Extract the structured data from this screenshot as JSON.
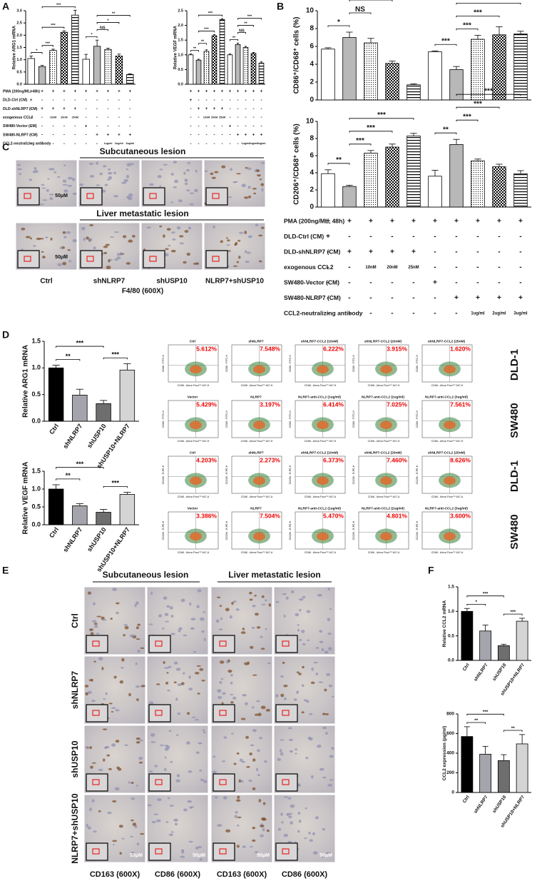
{
  "panels": {
    "a": "A",
    "b": "B",
    "c": "C",
    "d": "D",
    "e": "E",
    "f": "F"
  },
  "conditions": {
    "rows": [
      {
        "label": "PMA (200ng/ML, 48h)",
        "cells": [
          "+",
          "+",
          "+",
          "+",
          "+",
          "+",
          "+",
          "+",
          "+",
          "+"
        ]
      },
      {
        "label": "DLD-Ctrl (CM)",
        "cells": [
          "+",
          "-",
          "-",
          "-",
          "-",
          "-",
          "-",
          "-",
          "-",
          "-"
        ]
      },
      {
        "label": "DLD-shNLRP7 (CM)",
        "cells": [
          "-",
          "+",
          "+",
          "+",
          "+",
          "-",
          "-",
          "-",
          "-",
          "-"
        ]
      },
      {
        "label": "exogenous CCL2",
        "cells": [
          "-",
          "-",
          "10nM",
          "20nM",
          "25nM",
          "-",
          "-",
          "-",
          "-",
          "-"
        ]
      },
      {
        "label": "SW480-Vector (CM)",
        "cells": [
          "-",
          "-",
          "-",
          "-",
          "-",
          "+",
          "-",
          "-",
          "-",
          "-"
        ]
      },
      {
        "label": "SW480-NLRP7 (CM)",
        "cells": [
          "-",
          "-",
          "-",
          "-",
          "-",
          "-",
          "+",
          "+",
          "+",
          "+"
        ]
      },
      {
        "label": "CCL2-neutralizing antibody",
        "cells": [
          "-",
          "-",
          "-",
          "-",
          "-",
          "-",
          "-",
          "1ug/ml",
          "2ug/ml",
          "3ug/ml"
        ]
      }
    ]
  },
  "chart_data": [
    {
      "type": "bar",
      "y_label": "Relative ARG1 mRNA",
      "values": [
        1.05,
        0.72,
        1.38,
        2.12,
        2.82,
        1.02,
        1.55,
        1.42,
        1.15,
        0.4
      ],
      "errors": [
        0.1,
        0.05,
        0.05,
        0.06,
        0.2,
        0.2,
        0.25,
        0.05,
        0.08,
        0.03
      ],
      "patterns": [
        "white",
        "gray",
        "dots",
        "checker",
        "hlines",
        "white",
        "gray",
        "dots",
        "checker",
        "hlines"
      ],
      "ylim": [
        0,
        3
      ],
      "yticks": [
        {
          "value": 0,
          "label": "0.0"
        },
        0.5,
        {
          "value": 1,
          "label": "1.0"
        },
        1.5,
        {
          "value": 2,
          "label": "2.0"
        },
        2.5,
        {
          "value": 3,
          "label": "3.0"
        }
      ],
      "significance": [
        {
          "from": 0,
          "to": 1,
          "label": "*"
        },
        {
          "from": 1,
          "to": 2,
          "label": "***"
        },
        {
          "from": 1,
          "to": 3,
          "label": "***"
        },
        {
          "from": 1,
          "to": 4,
          "label": "***"
        },
        {
          "from": 5,
          "to": 6,
          "label": "*"
        },
        {
          "from": 6,
          "to": 7,
          "label": "NS"
        },
        {
          "from": 6,
          "to": 8,
          "label": "*"
        },
        {
          "from": 6,
          "to": 9,
          "label": "**"
        }
      ]
    },
    {
      "type": "bar",
      "y_label": "Relative VEGF mRNA",
      "values": [
        1.0,
        0.82,
        1.12,
        1.65,
        2.2,
        1.0,
        1.35,
        1.25,
        1.05,
        0.72
      ],
      "errors": [
        0.03,
        0.03,
        0.05,
        0.04,
        0.03,
        0.03,
        0.05,
        0.04,
        0.03,
        0.04
      ],
      "patterns": [
        "white",
        "gray",
        "dots",
        "checker",
        "hlines",
        "white",
        "gray",
        "dots",
        "checker",
        "hlines"
      ],
      "ylim": [
        0,
        2.5
      ],
      "yticks": [
        {
          "value": 0,
          "label": "0.0"
        },
        0.5,
        {
          "value": 1,
          "label": "1.0"
        },
        1.5,
        {
          "value": 2,
          "label": "2.0"
        },
        2.5
      ],
      "significance": [
        {
          "from": 0,
          "to": 1,
          "label": "**"
        },
        {
          "from": 1,
          "to": 2,
          "label": "**"
        },
        {
          "from": 1,
          "to": 3,
          "label": "***"
        },
        {
          "from": 1,
          "to": 4,
          "label": "***"
        },
        {
          "from": 5,
          "to": 6,
          "label": "**"
        },
        {
          "from": 6,
          "to": 7,
          "label": "NS"
        },
        {
          "from": 6,
          "to": 8,
          "label": "**"
        },
        {
          "from": 6,
          "to": 9,
          "label": "***"
        }
      ]
    },
    {
      "type": "bar",
      "y_label": "CD86⁺/CD68⁺ cells (%)",
      "values": [
        5.7,
        7.0,
        6.4,
        4.1,
        1.7,
        5.4,
        3.4,
        6.8,
        7.3,
        7.4
      ],
      "errors": [
        0.15,
        0.6,
        0.5,
        0.25,
        0.1,
        0.1,
        0.35,
        0.45,
        0.9,
        0.3
      ],
      "patterns": [
        "white",
        "gray",
        "dots",
        "checker",
        "hlines",
        "white",
        "gray",
        "dots",
        "checker",
        "hlines"
      ],
      "ylim": [
        0,
        10
      ],
      "yticks": [
        0,
        2,
        4,
        6,
        8,
        10
      ],
      "significance": [
        {
          "from": 0,
          "to": 1,
          "label": "*"
        },
        {
          "from": 1,
          "to": 2,
          "label": "NS"
        },
        {
          "from": 1,
          "to": 3,
          "label": "***"
        },
        {
          "from": 1,
          "to": 4,
          "label": "***"
        },
        {
          "from": 5,
          "to": 6,
          "label": "***"
        },
        {
          "from": 6,
          "to": 7,
          "label": "***"
        },
        {
          "from": 6,
          "to": 8,
          "label": "***"
        },
        {
          "from": 6,
          "to": 9,
          "label": "***"
        }
      ]
    },
    {
      "type": "bar",
      "y_label": "CD206⁺/CD68⁺ cells (%)",
      "values": [
        3.9,
        2.4,
        6.3,
        7.0,
        8.3,
        3.6,
        7.3,
        5.4,
        4.7,
        3.9
      ],
      "errors": [
        0.45,
        0.15,
        0.3,
        0.35,
        0.3,
        0.7,
        0.6,
        0.2,
        0.3,
        0.35
      ],
      "patterns": [
        "white",
        "gray",
        "dots",
        "checker",
        "hlines",
        "white",
        "gray",
        "dots",
        "checker",
        "hlines"
      ],
      "ylim": [
        0,
        10
      ],
      "yticks": [
        0,
        2,
        4,
        6,
        8,
        10
      ],
      "significance": [
        {
          "from": 0,
          "to": 1,
          "label": "**"
        },
        {
          "from": 1,
          "to": 2,
          "label": "***"
        },
        {
          "from": 1,
          "to": 3,
          "label": "***"
        },
        {
          "from": 1,
          "to": 4,
          "label": "***"
        },
        {
          "from": 5,
          "to": 6,
          "label": "**"
        },
        {
          "from": 6,
          "to": 7,
          "label": "***"
        },
        {
          "from": 6,
          "to": 8,
          "label": "***"
        },
        {
          "from": 6,
          "to": 9,
          "label": "***"
        }
      ]
    },
    {
      "type": "bar",
      "y_label": "Relative ARG1 mRNA",
      "categories": [
        "Ctrl",
        "shNLRP7",
        "shUSP10",
        "shUSP10+NLRP7"
      ],
      "values": [
        1.0,
        0.49,
        0.33,
        0.96
      ],
      "errors": [
        0.05,
        0.11,
        0.06,
        0.12
      ],
      "colors": [
        "#000000",
        "#a4a4ac",
        "#6e6e6e",
        "#d4d4d4"
      ],
      "ylim": [
        0,
        1.5
      ],
      "yticks": [
        {
          "value": 0,
          "label": "0.0"
        },
        0.5,
        {
          "value": 1,
          "label": "1.0"
        },
        1.5
      ],
      "significance": [
        {
          "from": 0,
          "to": 1,
          "label": "**"
        },
        {
          "from": 2,
          "to": 3,
          "label": "***"
        },
        {
          "from": 0,
          "to": 2,
          "label": "***"
        }
      ]
    },
    {
      "type": "bar",
      "y_label": "Relative VEGF mRNA",
      "categories": [
        "Ctrl",
        "shNLRP7",
        "shUSP10",
        "shUSP10+NLRP7"
      ],
      "values": [
        1.0,
        0.53,
        0.35,
        0.85
      ],
      "errors": [
        0.12,
        0.06,
        0.08,
        0.06
      ],
      "colors": [
        "#000000",
        "#a4a4ac",
        "#6e6e6e",
        "#d4d4d4"
      ],
      "ylim": [
        0,
        1.5
      ],
      "yticks": [
        {
          "value": 0,
          "label": "0.0"
        },
        0.5,
        {
          "value": 1,
          "label": "1.0"
        },
        1.5
      ],
      "significance": [
        {
          "from": 0,
          "to": 1,
          "label": "**"
        },
        {
          "from": 2,
          "to": 3,
          "label": "***"
        },
        {
          "from": 0,
          "to": 2,
          "label": "***"
        }
      ]
    },
    {
      "type": "bar",
      "y_label": "Relative CCL2 mRNA",
      "categories": [
        "Ctrl",
        "shNLRP7",
        "shUSP10",
        "shUSP10+NLRP7"
      ],
      "values": [
        1.0,
        0.6,
        0.3,
        0.8
      ],
      "errors": [
        0.06,
        0.12,
        0.03,
        0.06
      ],
      "colors": [
        "#000000",
        "#a4a4ac",
        "#6e6e6e",
        "#d4d4d4"
      ],
      "ylim": [
        0,
        1.5
      ],
      "yticks": [
        {
          "value": 0,
          "label": "0.0"
        },
        0.5,
        {
          "value": 1,
          "label": "1.0"
        },
        1.5
      ],
      "significance": [
        {
          "from": 0,
          "to": 1,
          "label": "*"
        },
        {
          "from": 2,
          "to": 3,
          "label": "***"
        },
        {
          "from": 0,
          "to": 2,
          "label": "***"
        }
      ]
    },
    {
      "type": "bar",
      "y_label": "CCL2 expression (pg/ml)",
      "categories": [
        "Ctrl",
        "shNLRP7",
        "shUSP10",
        "shUSP10+NLRP7"
      ],
      "values": [
        570,
        390,
        325,
        495
      ],
      "errors": [
        100,
        80,
        60,
        95
      ],
      "colors": [
        "#000000",
        "#a4a4ac",
        "#6e6e6e",
        "#d4d4d4"
      ],
      "ylim": [
        0,
        800
      ],
      "yticks": [
        0,
        200,
        400,
        600,
        800
      ],
      "significance": [
        {
          "from": 0,
          "to": 1,
          "label": "**"
        },
        {
          "from": 2,
          "to": 3,
          "label": "**"
        },
        {
          "from": 0,
          "to": 2,
          "label": "***"
        }
      ]
    }
  ],
  "panel_c": {
    "header_top": "Subcutaneous lesion",
    "header_bottom": "Liver metastatic lesion",
    "scale_bar": "50μM",
    "columns": [
      "Ctrl",
      "shNLRP7",
      "shUSP10",
      "NLRP7+shUSP10"
    ],
    "caption": "F4/80 (600X)"
  },
  "flow": {
    "rows": [
      {
        "label": "DLD-1",
        "y_axis": "CD86 - FITC-H",
        "x_axis": "CD68 - Alexa Fluor™ 647-H",
        "plots": [
          {
            "title": "Ctrl",
            "percent": "5.612%"
          },
          {
            "title": "shNLRP7",
            "percent": "7.548%"
          },
          {
            "title": "shNLRP7-CCL2 (10nM)",
            "percent": "6.222%"
          },
          {
            "title": "shNLRP7-CCL2 (20nM)",
            "percent": "3.915%"
          },
          {
            "title": "shNLRP7-CCL2 (25nM)",
            "percent": "1.620%"
          }
        ]
      },
      {
        "label": "SW480",
        "y_axis": "CD86 - FITC-H",
        "x_axis": "CD68 - Alexa Fluor™ 647-H",
        "plots": [
          {
            "title": "Vector",
            "percent": "5.429%"
          },
          {
            "title": "NLRP7",
            "percent": "3.197%"
          },
          {
            "title": "NLRP7-anti-CCL2 (1ug/ml)",
            "percent": "6.414%"
          },
          {
            "title": "NLRP7-anti-CCL2 (2ug/ml)",
            "percent": "7.025%"
          },
          {
            "title": "NLRP7-anti-CCL2 (3ug/ml)",
            "percent": "7.561%"
          }
        ]
      },
      {
        "label": "DLD-1",
        "y_axis": "CD206 - R-PE-H",
        "x_axis": "CD68 - Alexa Fluor™ 647-A",
        "plots": [
          {
            "title": "Ctrl",
            "percent": "4.203%"
          },
          {
            "title": "shNLRP7",
            "percent": "2.273%"
          },
          {
            "title": "shNLRP7-CCL2 (10nM)",
            "percent": "6.373%"
          },
          {
            "title": "shNLRP7-CCL2 (20nM)",
            "percent": "7.460%"
          },
          {
            "title": "shNLRP7-CCL2 (25nM)",
            "percent": "8.626%"
          }
        ]
      },
      {
        "label": "SW480",
        "y_axis": "CD206 - R-PE-H",
        "x_axis": "CD68 - Alexa Fluor™ 647-A",
        "plots": [
          {
            "title": "Vector",
            "percent": "3.386%"
          },
          {
            "title": "NLRP7",
            "percent": "7.504%"
          },
          {
            "title": "NLRP7-anti-CCL2 (1ug/ml)",
            "percent": "5.470%"
          },
          {
            "title": "NLRP7-anti-CCL2 (2ug/ml)",
            "percent": "4.801%"
          },
          {
            "title": "NLRP7-anti-CCL2 (3ug/ml)",
            "percent": "3.600%"
          }
        ]
      }
    ]
  },
  "panel_e": {
    "header_left": "Subcutaneous lesion",
    "header_right": "Liver metastatic lesion",
    "scale_bar": "50μM",
    "rows": [
      "Ctrl",
      "shNLRP7",
      "shUSP10",
      "NLRP7+shUSP10"
    ],
    "columns": [
      "CD163 (600X)",
      "CD86 (600X)",
      "CD163 (600X)",
      "CD86 (600X)"
    ]
  }
}
